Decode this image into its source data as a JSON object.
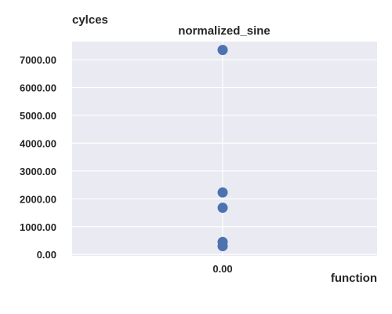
{
  "chart_data": {
    "type": "scatter",
    "title": "normalized_sine",
    "xlabel": "function",
    "ylabel": "cylces",
    "x_ticks": [
      "0.00"
    ],
    "y_ticks": [
      "0.00",
      "1000.00",
      "2000.00",
      "3000.00",
      "4000.00",
      "5000.00",
      "6000.00",
      "7000.00"
    ],
    "ylim": [
      -50,
      7650
    ],
    "grid": true,
    "series": [
      {
        "color": "#4c72b0",
        "points": [
          {
            "x": 0,
            "y": 7350
          },
          {
            "x": 0,
            "y": 2230
          },
          {
            "x": 0,
            "y": 1680
          },
          {
            "x": 0,
            "y": 450
          },
          {
            "x": 0,
            "y": 300
          }
        ]
      }
    ],
    "background_color": "#eaeaf2",
    "grid_color": "#ffffff"
  }
}
